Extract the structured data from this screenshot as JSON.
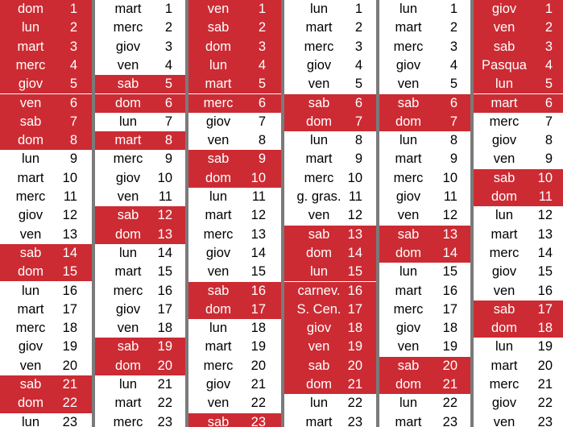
{
  "highlight_color": "#cc2b33",
  "columns": [
    {
      "rows": [
        {
          "day": "dom",
          "num": "1",
          "hl": true
        },
        {
          "day": "lun",
          "num": "2",
          "hl": true
        },
        {
          "day": "mart",
          "num": "3",
          "hl": true
        },
        {
          "day": "merc",
          "num": "4",
          "hl": true
        },
        {
          "day": "giov",
          "num": "5",
          "hl": true
        },
        {
          "day": "ven",
          "num": "6",
          "hl": true
        },
        {
          "day": "sab",
          "num": "7",
          "hl": true
        },
        {
          "day": "dom",
          "num": "8",
          "hl": true
        },
        {
          "day": "lun",
          "num": "9",
          "hl": false
        },
        {
          "day": "mart",
          "num": "10",
          "hl": false
        },
        {
          "day": "merc",
          "num": "11",
          "hl": false
        },
        {
          "day": "giov",
          "num": "12",
          "hl": false
        },
        {
          "day": "ven",
          "num": "13",
          "hl": false
        },
        {
          "day": "sab",
          "num": "14",
          "hl": true
        },
        {
          "day": "dom",
          "num": "15",
          "hl": true
        },
        {
          "day": "lun",
          "num": "16",
          "hl": false
        },
        {
          "day": "mart",
          "num": "17",
          "hl": false
        },
        {
          "day": "merc",
          "num": "18",
          "hl": false
        },
        {
          "day": "giov",
          "num": "19",
          "hl": false
        },
        {
          "day": "ven",
          "num": "20",
          "hl": false
        },
        {
          "day": "sab",
          "num": "21",
          "hl": true
        },
        {
          "day": "dom",
          "num": "22",
          "hl": true
        },
        {
          "day": "lun",
          "num": "23",
          "hl": false
        }
      ]
    },
    {
      "rows": [
        {
          "day": "mart",
          "num": "1",
          "hl": false
        },
        {
          "day": "merc",
          "num": "2",
          "hl": false
        },
        {
          "day": "giov",
          "num": "3",
          "hl": false
        },
        {
          "day": "ven",
          "num": "4",
          "hl": false
        },
        {
          "day": "sab",
          "num": "5",
          "hl": true
        },
        {
          "day": "dom",
          "num": "6",
          "hl": true
        },
        {
          "day": "lun",
          "num": "7",
          "hl": false
        },
        {
          "day": "mart",
          "num": "8",
          "hl": true
        },
        {
          "day": "merc",
          "num": "9",
          "hl": false
        },
        {
          "day": "giov",
          "num": "10",
          "hl": false
        },
        {
          "day": "ven",
          "num": "11",
          "hl": false
        },
        {
          "day": "sab",
          "num": "12",
          "hl": true
        },
        {
          "day": "dom",
          "num": "13",
          "hl": true
        },
        {
          "day": "lun",
          "num": "14",
          "hl": false
        },
        {
          "day": "mart",
          "num": "15",
          "hl": false
        },
        {
          "day": "merc",
          "num": "16",
          "hl": false
        },
        {
          "day": "giov",
          "num": "17",
          "hl": false
        },
        {
          "day": "ven",
          "num": "18",
          "hl": false
        },
        {
          "day": "sab",
          "num": "19",
          "hl": true
        },
        {
          "day": "dom",
          "num": "20",
          "hl": true
        },
        {
          "day": "lun",
          "num": "21",
          "hl": false
        },
        {
          "day": "mart",
          "num": "22",
          "hl": false
        },
        {
          "day": "merc",
          "num": "23",
          "hl": false
        }
      ]
    },
    {
      "rows": [
        {
          "day": "ven",
          "num": "1",
          "hl": true
        },
        {
          "day": "sab",
          "num": "2",
          "hl": true
        },
        {
          "day": "dom",
          "num": "3",
          "hl": true
        },
        {
          "day": "lun",
          "num": "4",
          "hl": true
        },
        {
          "day": "mart",
          "num": "5",
          "hl": true
        },
        {
          "day": "merc",
          "num": "6",
          "hl": true
        },
        {
          "day": "giov",
          "num": "7",
          "hl": false
        },
        {
          "day": "ven",
          "num": "8",
          "hl": false
        },
        {
          "day": "sab",
          "num": "9",
          "hl": true
        },
        {
          "day": "dom",
          "num": "10",
          "hl": true
        },
        {
          "day": "lun",
          "num": "11",
          "hl": false
        },
        {
          "day": "mart",
          "num": "12",
          "hl": false
        },
        {
          "day": "merc",
          "num": "13",
          "hl": false
        },
        {
          "day": "giov",
          "num": "14",
          "hl": false
        },
        {
          "day": "ven",
          "num": "15",
          "hl": false
        },
        {
          "day": "sab",
          "num": "16",
          "hl": true
        },
        {
          "day": "dom",
          "num": "17",
          "hl": true
        },
        {
          "day": "lun",
          "num": "18",
          "hl": false
        },
        {
          "day": "mart",
          "num": "19",
          "hl": false
        },
        {
          "day": "merc",
          "num": "20",
          "hl": false
        },
        {
          "day": "giov",
          "num": "21",
          "hl": false
        },
        {
          "day": "ven",
          "num": "22",
          "hl": false
        },
        {
          "day": "sab",
          "num": "23",
          "hl": true
        }
      ]
    },
    {
      "rows": [
        {
          "day": "lun",
          "num": "1",
          "hl": false
        },
        {
          "day": "mart",
          "num": "2",
          "hl": false
        },
        {
          "day": "merc",
          "num": "3",
          "hl": false
        },
        {
          "day": "giov",
          "num": "4",
          "hl": false
        },
        {
          "day": "ven",
          "num": "5",
          "hl": false
        },
        {
          "day": "sab",
          "num": "6",
          "hl": true
        },
        {
          "day": "dom",
          "num": "7",
          "hl": true
        },
        {
          "day": "lun",
          "num": "8",
          "hl": false
        },
        {
          "day": "mart",
          "num": "9",
          "hl": false
        },
        {
          "day": "merc",
          "num": "10",
          "hl": false
        },
        {
          "day": "g. gras.",
          "num": "11",
          "hl": false
        },
        {
          "day": "ven",
          "num": "12",
          "hl": false
        },
        {
          "day": "sab",
          "num": "13",
          "hl": true
        },
        {
          "day": "dom",
          "num": "14",
          "hl": true
        },
        {
          "day": "lun",
          "num": "15",
          "hl": true
        },
        {
          "day": "carnev.",
          "num": "16",
          "hl": true
        },
        {
          "day": "S. Cen.",
          "num": "17",
          "hl": true
        },
        {
          "day": "giov",
          "num": "18",
          "hl": true
        },
        {
          "day": "ven",
          "num": "19",
          "hl": true
        },
        {
          "day": "sab",
          "num": "20",
          "hl": true
        },
        {
          "day": "dom",
          "num": "21",
          "hl": true
        },
        {
          "day": "lun",
          "num": "22",
          "hl": false
        },
        {
          "day": "mart",
          "num": "23",
          "hl": false
        }
      ]
    },
    {
      "rows": [
        {
          "day": "lun",
          "num": "1",
          "hl": false
        },
        {
          "day": "mart",
          "num": "2",
          "hl": false
        },
        {
          "day": "merc",
          "num": "3",
          "hl": false
        },
        {
          "day": "giov",
          "num": "4",
          "hl": false
        },
        {
          "day": "ven",
          "num": "5",
          "hl": false
        },
        {
          "day": "sab",
          "num": "6",
          "hl": true
        },
        {
          "day": "dom",
          "num": "7",
          "hl": true
        },
        {
          "day": "lun",
          "num": "8",
          "hl": false
        },
        {
          "day": "mart",
          "num": "9",
          "hl": false
        },
        {
          "day": "merc",
          "num": "10",
          "hl": false
        },
        {
          "day": "giov",
          "num": "11",
          "hl": false
        },
        {
          "day": "ven",
          "num": "12",
          "hl": false
        },
        {
          "day": "sab",
          "num": "13",
          "hl": true
        },
        {
          "day": "dom",
          "num": "14",
          "hl": true
        },
        {
          "day": "lun",
          "num": "15",
          "hl": false
        },
        {
          "day": "mart",
          "num": "16",
          "hl": false
        },
        {
          "day": "merc",
          "num": "17",
          "hl": false
        },
        {
          "day": "giov",
          "num": "18",
          "hl": false
        },
        {
          "day": "ven",
          "num": "19",
          "hl": false
        },
        {
          "day": "sab",
          "num": "20",
          "hl": true
        },
        {
          "day": "dom",
          "num": "21",
          "hl": true
        },
        {
          "day": "lun",
          "num": "22",
          "hl": false
        },
        {
          "day": "mart",
          "num": "23",
          "hl": false
        }
      ]
    },
    {
      "rows": [
        {
          "day": "giov",
          "num": "1",
          "hl": true
        },
        {
          "day": "ven",
          "num": "2",
          "hl": true
        },
        {
          "day": "sab",
          "num": "3",
          "hl": true
        },
        {
          "day": "Pasqua",
          "num": "4",
          "hl": true
        },
        {
          "day": "lun",
          "num": "5",
          "hl": true
        },
        {
          "day": "mart",
          "num": "6",
          "hl": true
        },
        {
          "day": "merc",
          "num": "7",
          "hl": false
        },
        {
          "day": "giov",
          "num": "8",
          "hl": false
        },
        {
          "day": "ven",
          "num": "9",
          "hl": false
        },
        {
          "day": "sab",
          "num": "10",
          "hl": true
        },
        {
          "day": "dom",
          "num": "11",
          "hl": true
        },
        {
          "day": "lun",
          "num": "12",
          "hl": false
        },
        {
          "day": "mart",
          "num": "13",
          "hl": false
        },
        {
          "day": "merc",
          "num": "14",
          "hl": false
        },
        {
          "day": "giov",
          "num": "15",
          "hl": false
        },
        {
          "day": "ven",
          "num": "16",
          "hl": false
        },
        {
          "day": "sab",
          "num": "17",
          "hl": true
        },
        {
          "day": "dom",
          "num": "18",
          "hl": true
        },
        {
          "day": "lun",
          "num": "19",
          "hl": false
        },
        {
          "day": "mart",
          "num": "20",
          "hl": false
        },
        {
          "day": "merc",
          "num": "21",
          "hl": false
        },
        {
          "day": "giov",
          "num": "22",
          "hl": false
        },
        {
          "day": "ven",
          "num": "23",
          "hl": false
        }
      ]
    }
  ]
}
